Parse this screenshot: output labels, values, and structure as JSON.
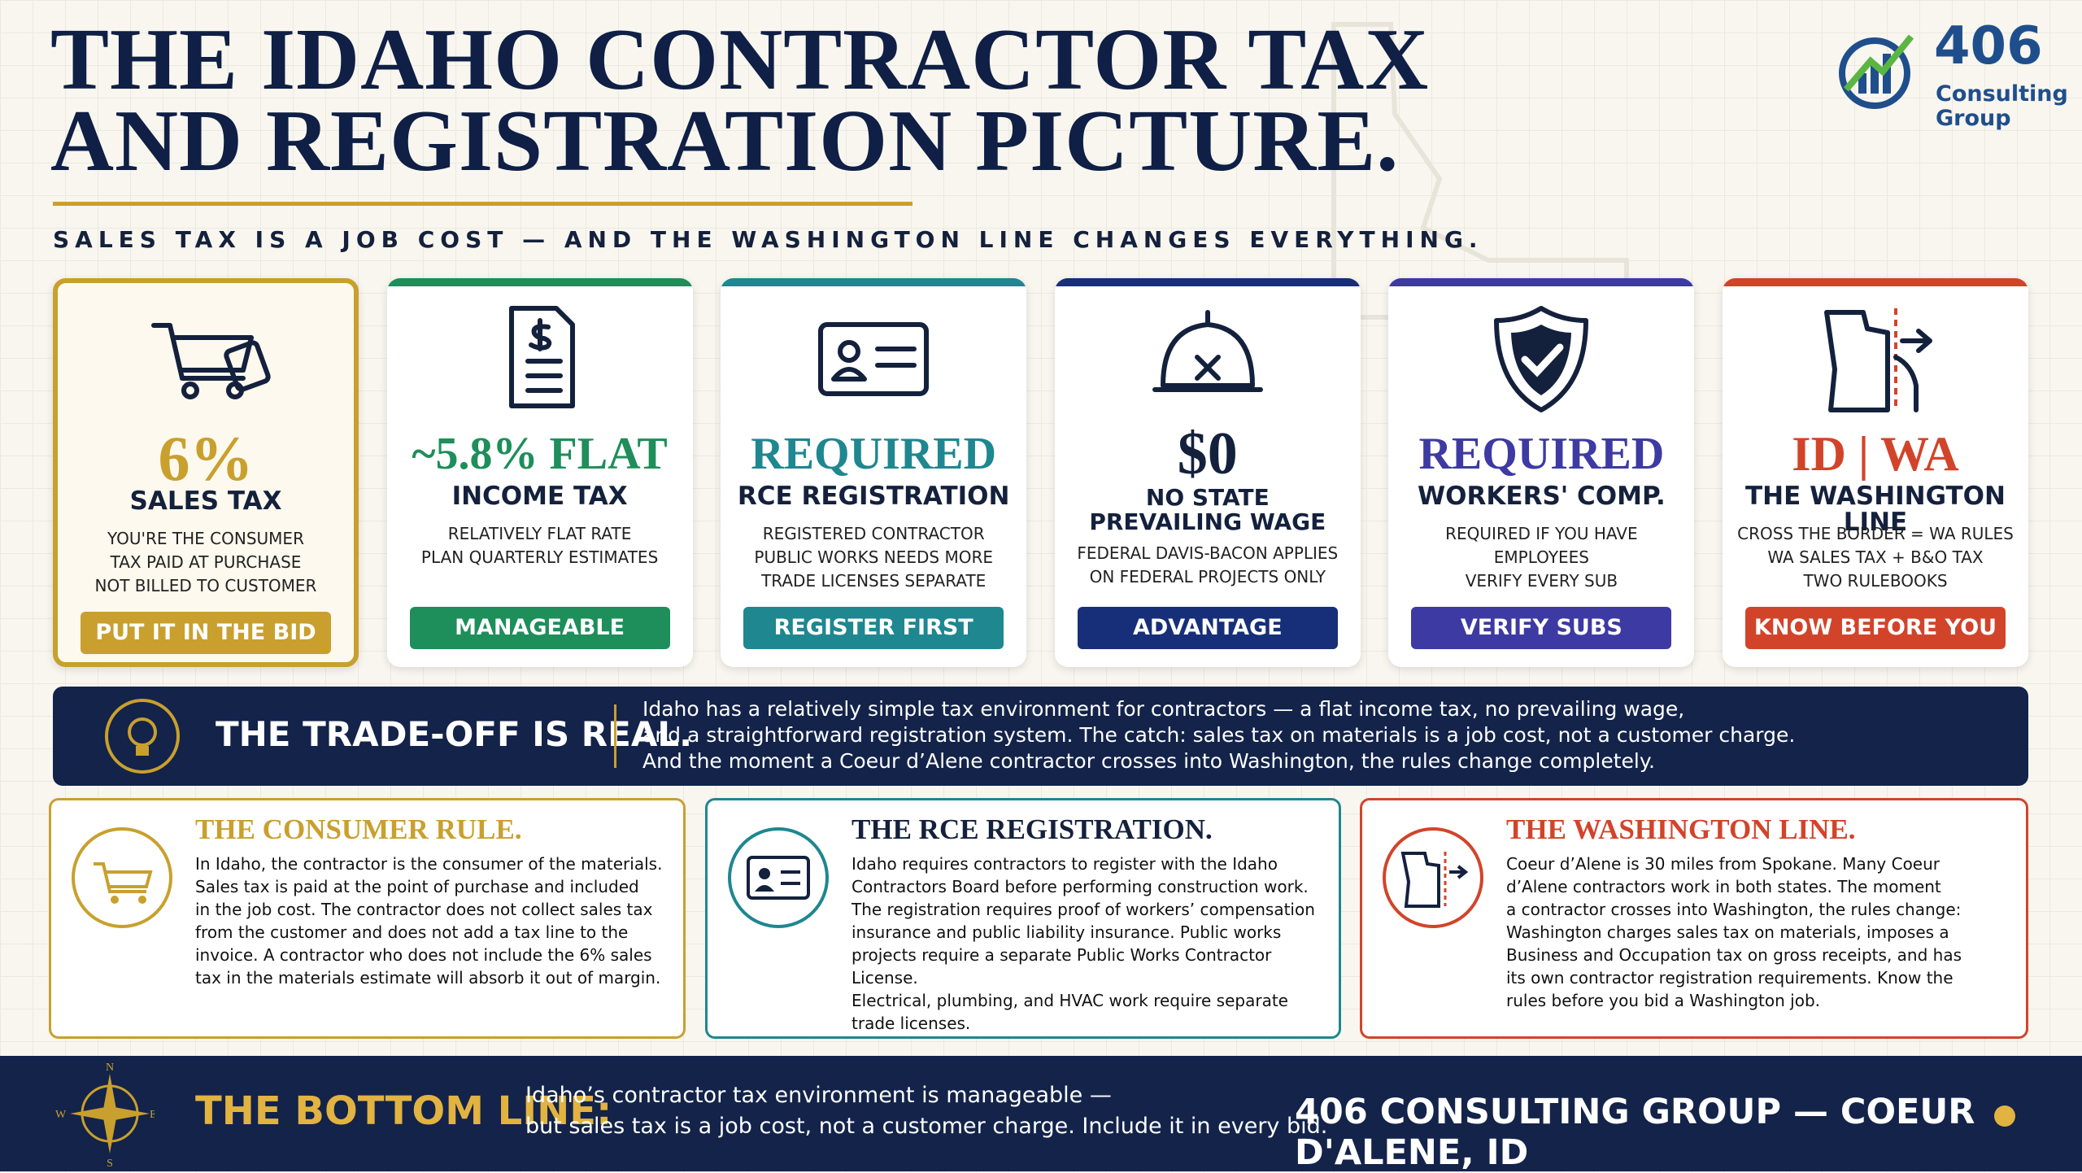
{
  "header": {
    "title_lines": [
      "THE IDAHO CONTRACTOR TAX",
      "AND REGISTRATION PICTURE."
    ],
    "subtitle": "SALES TAX IS A JOB COST — AND THE WASHINGTON LINE CHANGES EVERYTHING."
  },
  "logo": {
    "number": "406",
    "line1": "Consulting",
    "line2": "Group"
  },
  "cards": [
    {
      "value": "6%",
      "label": "SALES TAX",
      "lines": [
        "YOU'RE THE CONSUMER",
        "TAX PAID AT PURCHASE",
        "NOT BILLED TO CUSTOMER"
      ],
      "badge": "PUT IT IN THE BID"
    },
    {
      "value": "~5.8% FLAT",
      "label": "INCOME TAX",
      "lines": [
        "RELATIVELY FLAT RATE",
        "PLAN QUARTERLY ESTIMATES"
      ],
      "badge": "MANAGEABLE"
    },
    {
      "value": "REQUIRED",
      "label": "RCE REGISTRATION",
      "lines": [
        "REGISTERED CONTRACTOR",
        "PUBLIC WORKS NEEDS MORE",
        "TRADE LICENSES SEPARATE"
      ],
      "badge": "REGISTER FIRST"
    },
    {
      "value": "$0",
      "label": "NO STATE PREVAILING WAGE",
      "lines": [
        "FEDERAL DAVIS-BACON APPLIES",
        "ON FEDERAL PROJECTS ONLY"
      ],
      "badge": "ADVANTAGE"
    },
    {
      "value": "REQUIRED",
      "label": "WORKERS' COMP.",
      "lines": [
        "REQUIRED IF YOU HAVE EMPLOYEES",
        "VERIFY EVERY SUB"
      ],
      "badge": "VERIFY SUBS"
    },
    {
      "value": "ID | WA",
      "label": "THE WASHINGTON LINE",
      "lines": [
        "CROSS THE BORDER = WA RULES",
        "WA SALES TAX + B&O TAX",
        "TWO RULEBOOKS"
      ],
      "badge": "KNOW BEFORE YOU BID"
    }
  ],
  "banner": {
    "heading": "THE TRADE-OFF IS REAL.",
    "lines": [
      "Idaho has a relatively simple tax environment for contractors — a flat income tax, no prevailing wage,",
      "and a straightforward registration system. The catch: sales tax on materials is a job cost, not a customer charge.",
      "And the moment a Coeur d’Alene contractor crosses into Washington, the rules change completely."
    ]
  },
  "panels": [
    {
      "title": "THE CONSUMER RULE.",
      "lines": [
        "In Idaho, the contractor is the consumer of the materials.",
        "Sales tax is paid at the point of purchase and included",
        "in the job cost. The contractor does not collect sales tax",
        "from the customer and does not add a tax line to the",
        "invoice. A contractor who does not include the 6% sales",
        "tax in the materials estimate will absorb it out of margin."
      ]
    },
    {
      "title": "THE RCE REGISTRATION.",
      "lines": [
        "Idaho requires contractors to register with the Idaho",
        "Contractors Board before performing construction work.",
        "The registration requires proof of workers’ compensation",
        "insurance and public liability insurance. Public works",
        "projects require a separate Public Works Contractor License.",
        "Electrical, plumbing, and HVAC work require separate",
        "trade licenses."
      ]
    },
    {
      "title": "THE WASHINGTON LINE.",
      "lines": [
        "Coeur d’Alene is 30 miles from Spokane. Many Coeur",
        "d’Alene contractors work in both states. The moment",
        "a contractor crosses into Washington, the rules change:",
        "Washington charges sales tax on materials, imposes a",
        "Business and Occupation tax on gross receipts, and has",
        "its own contractor registration requirements. Know the",
        "rules before you bid a Washington job."
      ]
    }
  ],
  "footer": {
    "compass": [
      "N",
      "E",
      "S",
      "W"
    ],
    "heading": "THE BOTTOM LINE:",
    "lines": [
      "Idaho’s contractor tax environment is manageable —",
      "but sales tax is a job cost, not a customer charge. Include it in every bid."
    ],
    "signature": "406 CONSULTING GROUP — COEUR D'ALENE, ID"
  }
}
